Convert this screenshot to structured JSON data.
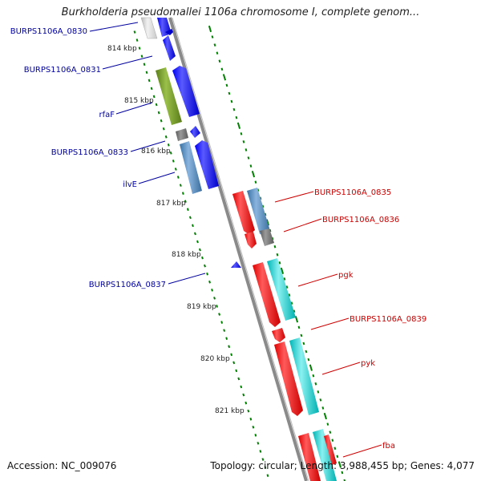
{
  "header": {
    "title": "Burkholderia pseudomallei 1106a chromosome I, complete genom..."
  },
  "footer": {
    "accession": "Accession: NC_009076",
    "summary": "Topology: circular; Length: 3,988,455 bp; Genes: 4,077"
  },
  "map": {
    "scale_labels": [
      "814 kbp",
      "815 kbp",
      "816 kbp",
      "817 kbp",
      "818 kbp",
      "819 kbp",
      "820 kbp",
      "821 kbp"
    ],
    "left_labels": [
      "BURPS1106A_0830",
      "BURPS1106A_0831",
      "rfaF",
      "BURPS1106A_0833",
      "ilvE",
      "BURPS1106A_0837"
    ],
    "right_labels": [
      "BURPS1106A_0835",
      "BURPS1106A_0836",
      "pgk",
      "BURPS1106A_0839",
      "pyk",
      "fba"
    ],
    "colors": {
      "reverse_label": "#00009e",
      "forward_label": "#cc0000",
      "cds_reverse": "#0000ee",
      "cds_forward": "#ee0000",
      "orf_teal": "#00c8c8",
      "orf_olive": "#6b8e23",
      "orf_steel": "#4682b4",
      "orf_gray": "#707070",
      "backbone": "#888888",
      "tick": "#008000"
    }
  }
}
